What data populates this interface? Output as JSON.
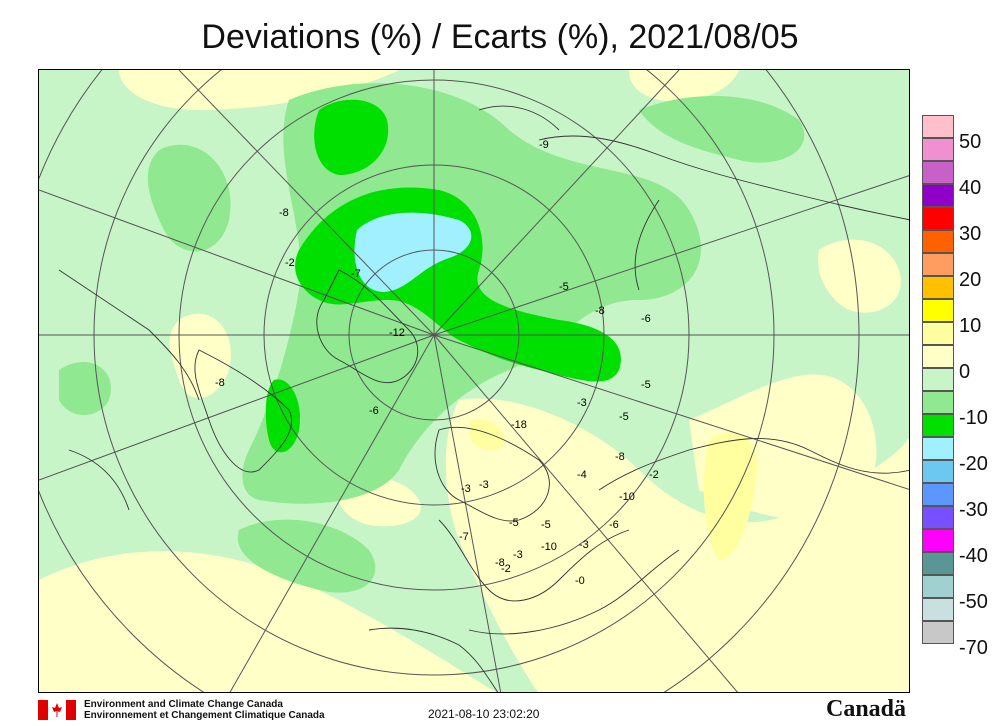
{
  "title": "Deviations (%) / Ecarts (%), 2021/08/05",
  "legend": {
    "ticks": [
      "50",
      "40",
      "30",
      "20",
      "10",
      "0",
      "-10",
      "-20",
      "-30",
      "-40",
      "-50",
      "-70"
    ],
    "colors": [
      "#ffc0cb",
      "#f090d0",
      "#c860c8",
      "#9000c8",
      "#ff0000",
      "#ff6000",
      "#ff9c60",
      "#ffc000",
      "#ffff00",
      "#ffffa0",
      "#ffffc8",
      "#c8f5c8",
      "#90e890",
      "#00e000",
      "#a0f0ff",
      "#6cc8f0",
      "#5c96ff",
      "#7850ff",
      "#ff00ff",
      "#5a9696",
      "#a0d0d0",
      "#c8e0e0",
      "#c8c8c8"
    ]
  },
  "map": {
    "contour_labels": [
      "-8",
      "-9",
      "-2",
      "-7",
      "-5",
      "-8",
      "-6",
      "-5",
      "-3",
      "-5",
      "-8",
      "-4",
      "-2",
      "-10",
      "-6",
      "-3",
      "-0",
      "-3",
      "-5",
      "-5",
      "-10",
      "-8",
      "-7",
      "-3",
      "-2",
      "-3",
      "-18",
      "-6",
      "-8",
      "-12"
    ],
    "land_color": "#c8f5c8",
    "line_color": "#555555"
  },
  "footer": {
    "agency_en": "Environment and Climate Change Canada",
    "agency_fr": "Environnement et Changement Climatique Canada",
    "timestamp": "2021-08-10 23:02:20",
    "wordmark": "Canadä"
  }
}
